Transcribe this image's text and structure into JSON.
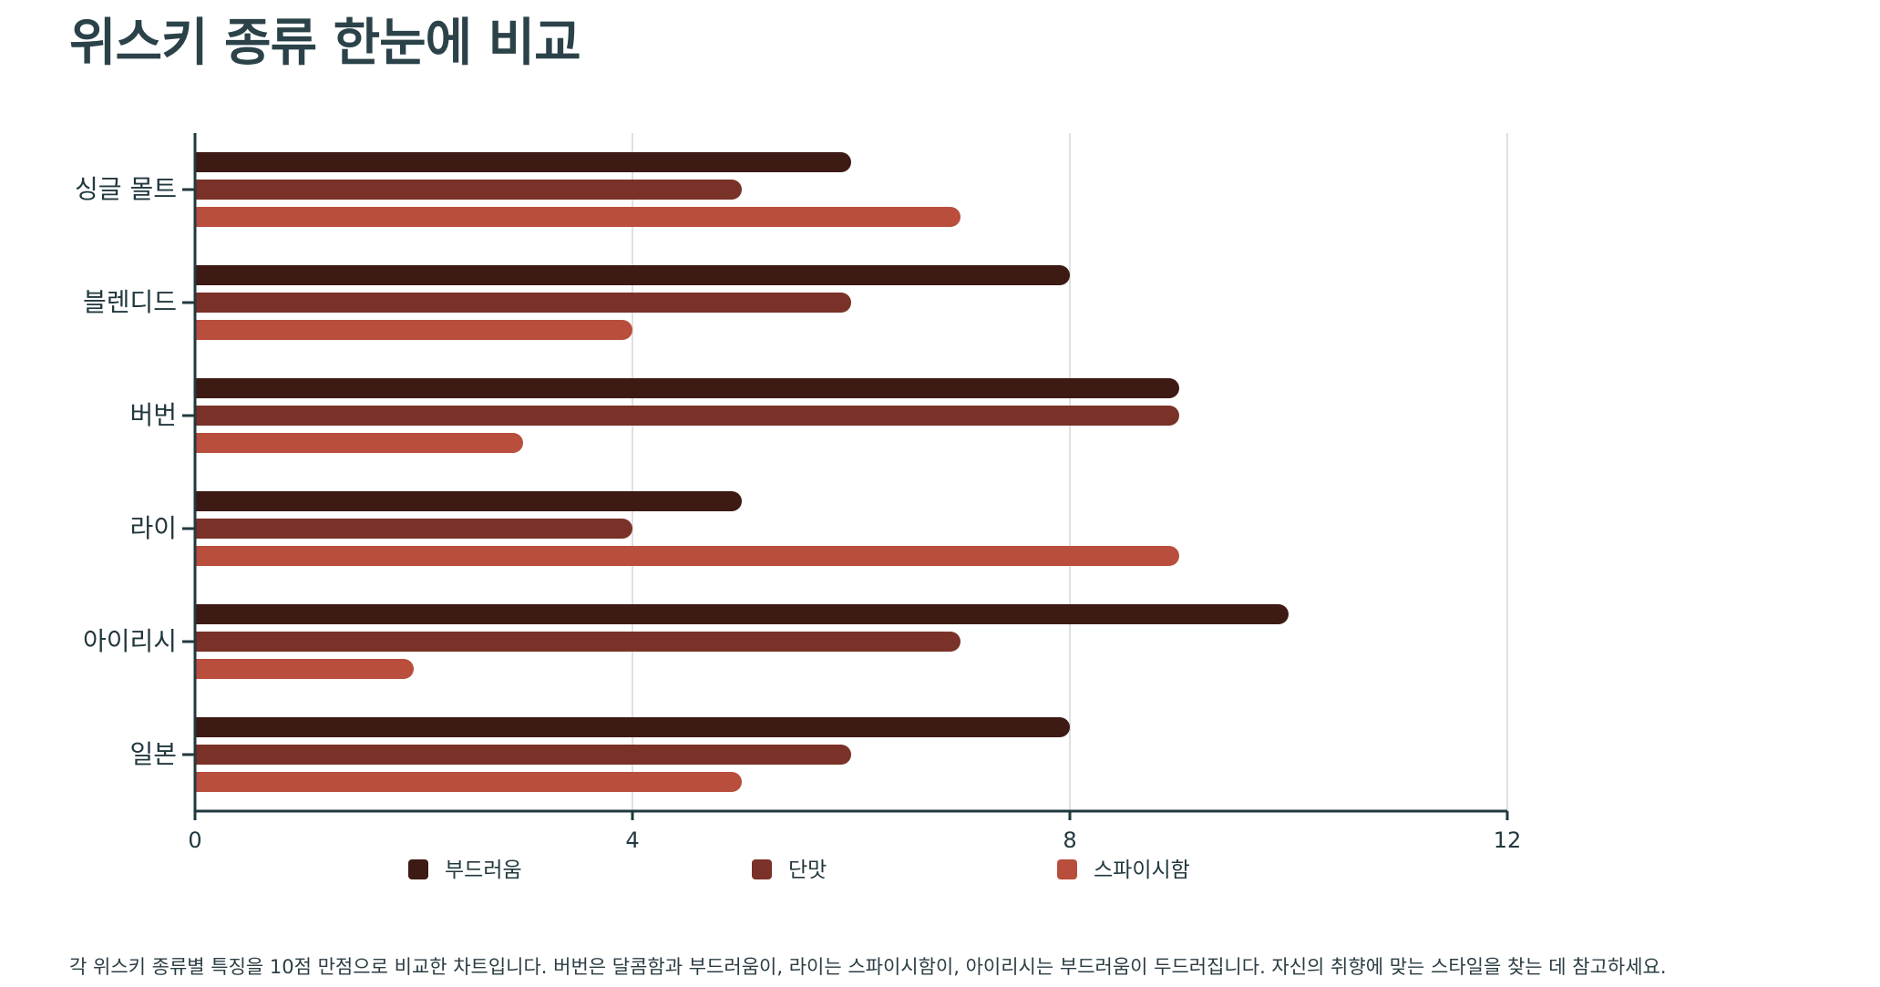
{
  "title": "위스키 종류 한눈에 비교",
  "footnote": "각 위스키 종류별 특징을 10점 만점으로 비교한 차트입니다. 버번은 달콤함과 부드러움이, 라이는 스파이시함이, 아이리시는 부드러움이 두드러집니다. 자신의 취향에 맞는 스타일을 찾는 데 참고하세요.",
  "colors": {
    "axis": "#22383f",
    "grid": "#d6d6d6"
  },
  "chart_data": {
    "type": "bar",
    "orientation": "horizontal",
    "categories": [
      "싱글 몰트",
      "블렌디드",
      "버번",
      "라이",
      "아이리시",
      "일본"
    ],
    "series": [
      {
        "name": "부드러움",
        "color": "#3d1a14",
        "values": [
          6,
          8,
          9,
          5,
          10,
          8
        ]
      },
      {
        "name": "단맛",
        "color": "#7a3127",
        "values": [
          5,
          6,
          9,
          4,
          7,
          6
        ]
      },
      {
        "name": "스파이시함",
        "color": "#b94e3c",
        "values": [
          7,
          4,
          3,
          9,
          2,
          5
        ]
      }
    ],
    "xlim": [
      0,
      12
    ],
    "xticks": [
      "0",
      "4",
      "8",
      "12"
    ],
    "grid": true,
    "legend_position": "bottom"
  }
}
